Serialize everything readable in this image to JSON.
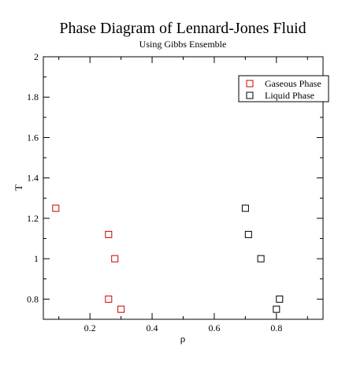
{
  "chart_data": {
    "type": "scatter",
    "title": "Phase Diagram of Lennard-Jones Fluid",
    "subtitle": "Using Gibbs Ensemble",
    "xlabel": "ρ",
    "ylabel": "T",
    "xlim": [
      0.05,
      0.95
    ],
    "ylim": [
      0.7,
      2.0
    ],
    "x_ticks": [
      0.2,
      0.4,
      0.6,
      0.8
    ],
    "x_tick_labels": [
      "0.2",
      "0.4",
      "0.6",
      "0.8"
    ],
    "y_ticks": [
      0.8,
      1.0,
      1.2,
      1.4,
      1.6,
      1.8,
      2.0
    ],
    "y_tick_labels": [
      "0.8",
      "1",
      "1.2",
      "1.4",
      "1.6",
      "1.8",
      "2"
    ],
    "grid": false,
    "legend_position": "top-right",
    "series": [
      {
        "name": "Gaseous Phase",
        "color": "#cc0000",
        "marker": "square-open",
        "points": [
          {
            "x": 0.09,
            "y": 1.25
          },
          {
            "x": 0.26,
            "y": 1.12
          },
          {
            "x": 0.28,
            "y": 1.0
          },
          {
            "x": 0.26,
            "y": 0.8
          },
          {
            "x": 0.3,
            "y": 0.75
          }
        ]
      },
      {
        "name": "Liquid Phase",
        "color": "#000000",
        "marker": "square-open",
        "points": [
          {
            "x": 0.7,
            "y": 1.25
          },
          {
            "x": 0.71,
            "y": 1.12
          },
          {
            "x": 0.75,
            "y": 1.0
          },
          {
            "x": 0.81,
            "y": 0.8
          },
          {
            "x": 0.8,
            "y": 0.75
          }
        ]
      }
    ]
  }
}
